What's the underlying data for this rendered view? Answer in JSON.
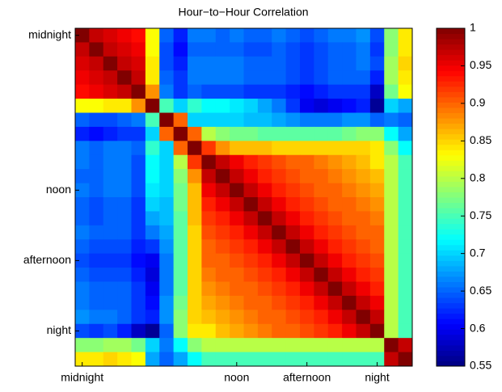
{
  "chart_data": {
    "type": "heatmap",
    "title": "Hour−to−Hour Correlation",
    "x_categories": [
      "midnight",
      null,
      null,
      null,
      null,
      null,
      null,
      null,
      null,
      null,
      null,
      "noon",
      null,
      null,
      null,
      null,
      "afternoon",
      null,
      null,
      null,
      null,
      "night",
      null,
      null
    ],
    "y_categories": [
      "midnight",
      null,
      null,
      null,
      null,
      null,
      null,
      null,
      null,
      null,
      null,
      "noon",
      null,
      null,
      null,
      null,
      "afternoon",
      null,
      null,
      null,
      null,
      "night",
      null,
      null
    ],
    "colormap": "jet",
    "clim": [
      0.55,
      1
    ],
    "cticks": [
      0.55,
      0.6,
      0.65,
      0.7,
      0.75,
      0.8,
      0.85,
      0.9,
      0.95,
      1
    ],
    "values": [
      [
        1,
        0.97,
        0.96,
        0.95,
        0.94,
        0.83,
        0.65,
        0.62,
        0.66,
        0.66,
        0.65,
        0.66,
        0.65,
        0.65,
        0.66,
        0.65,
        0.64,
        0.65,
        0.66,
        0.66,
        0.67,
        0.64,
        0.78,
        0.84
      ],
      [
        0.97,
        1,
        0.97,
        0.96,
        0.95,
        0.83,
        0.64,
        0.61,
        0.65,
        0.65,
        0.65,
        0.65,
        0.64,
        0.64,
        0.65,
        0.64,
        0.63,
        0.64,
        0.65,
        0.65,
        0.66,
        0.63,
        0.78,
        0.84
      ],
      [
        0.96,
        0.97,
        1,
        0.97,
        0.96,
        0.84,
        0.64,
        0.62,
        0.66,
        0.66,
        0.66,
        0.66,
        0.65,
        0.65,
        0.65,
        0.64,
        0.63,
        0.64,
        0.65,
        0.65,
        0.66,
        0.64,
        0.79,
        0.85
      ],
      [
        0.95,
        0.96,
        0.97,
        1,
        0.97,
        0.84,
        0.65,
        0.63,
        0.66,
        0.66,
        0.66,
        0.66,
        0.65,
        0.65,
        0.65,
        0.64,
        0.63,
        0.64,
        0.65,
        0.65,
        0.65,
        0.62,
        0.79,
        0.84
      ],
      [
        0.94,
        0.95,
        0.96,
        0.97,
        1,
        0.88,
        0.66,
        0.63,
        0.65,
        0.64,
        0.64,
        0.64,
        0.63,
        0.63,
        0.63,
        0.62,
        0.61,
        0.62,
        0.63,
        0.63,
        0.63,
        0.58,
        0.77,
        0.83
      ],
      [
        0.83,
        0.83,
        0.84,
        0.84,
        0.88,
        1,
        0.75,
        0.7,
        0.74,
        0.72,
        0.72,
        0.71,
        0.7,
        0.68,
        0.66,
        0.63,
        0.6,
        0.59,
        0.6,
        0.61,
        0.62,
        0.56,
        0.7,
        0.68
      ],
      [
        0.65,
        0.64,
        0.64,
        0.65,
        0.66,
        0.75,
        1,
        0.9,
        0.7,
        0.7,
        0.7,
        0.7,
        0.69,
        0.69,
        0.68,
        0.67,
        0.66,
        0.66,
        0.66,
        0.67,
        0.67,
        0.65,
        0.66,
        0.65
      ],
      [
        0.62,
        0.61,
        0.62,
        0.63,
        0.63,
        0.7,
        0.9,
        1,
        0.9,
        0.8,
        0.78,
        0.77,
        0.77,
        0.76,
        0.76,
        0.76,
        0.76,
        0.76,
        0.76,
        0.77,
        0.78,
        0.78,
        0.72,
        0.68
      ],
      [
        0.66,
        0.65,
        0.66,
        0.66,
        0.65,
        0.74,
        0.7,
        0.9,
        1,
        0.92,
        0.88,
        0.86,
        0.86,
        0.86,
        0.85,
        0.85,
        0.85,
        0.85,
        0.85,
        0.85,
        0.85,
        0.84,
        0.78,
        0.72
      ],
      [
        0.66,
        0.65,
        0.66,
        0.66,
        0.64,
        0.72,
        0.7,
        0.8,
        0.92,
        1,
        0.97,
        0.95,
        0.93,
        0.92,
        0.91,
        0.9,
        0.9,
        0.89,
        0.88,
        0.87,
        0.86,
        0.84,
        0.8,
        0.75
      ],
      [
        0.65,
        0.65,
        0.66,
        0.66,
        0.64,
        0.72,
        0.7,
        0.78,
        0.88,
        0.97,
        1,
        0.97,
        0.95,
        0.93,
        0.92,
        0.91,
        0.9,
        0.9,
        0.89,
        0.88,
        0.87,
        0.86,
        0.8,
        0.75
      ],
      [
        0.66,
        0.65,
        0.66,
        0.66,
        0.64,
        0.71,
        0.7,
        0.77,
        0.86,
        0.95,
        0.97,
        1,
        0.97,
        0.95,
        0.93,
        0.92,
        0.91,
        0.9,
        0.9,
        0.89,
        0.88,
        0.87,
        0.8,
        0.75
      ],
      [
        0.65,
        0.64,
        0.65,
        0.65,
        0.63,
        0.7,
        0.69,
        0.77,
        0.86,
        0.93,
        0.95,
        0.97,
        1,
        0.97,
        0.95,
        0.93,
        0.92,
        0.91,
        0.9,
        0.9,
        0.89,
        0.88,
        0.8,
        0.75
      ],
      [
        0.65,
        0.64,
        0.65,
        0.65,
        0.63,
        0.68,
        0.69,
        0.76,
        0.86,
        0.92,
        0.93,
        0.95,
        0.97,
        1,
        0.97,
        0.95,
        0.93,
        0.92,
        0.91,
        0.9,
        0.9,
        0.89,
        0.8,
        0.75
      ],
      [
        0.66,
        0.65,
        0.65,
        0.65,
        0.63,
        0.66,
        0.68,
        0.76,
        0.85,
        0.91,
        0.92,
        0.93,
        0.95,
        0.97,
        1,
        0.97,
        0.95,
        0.93,
        0.92,
        0.91,
        0.9,
        0.9,
        0.8,
        0.75
      ],
      [
        0.65,
        0.64,
        0.64,
        0.64,
        0.62,
        0.63,
        0.67,
        0.76,
        0.85,
        0.9,
        0.91,
        0.92,
        0.93,
        0.95,
        0.97,
        1,
        0.97,
        0.95,
        0.93,
        0.92,
        0.91,
        0.9,
        0.8,
        0.75
      ],
      [
        0.64,
        0.63,
        0.63,
        0.63,
        0.61,
        0.6,
        0.66,
        0.76,
        0.85,
        0.9,
        0.9,
        0.91,
        0.92,
        0.93,
        0.95,
        0.97,
        1,
        0.97,
        0.95,
        0.93,
        0.92,
        0.91,
        0.8,
        0.75
      ],
      [
        0.65,
        0.64,
        0.64,
        0.64,
        0.62,
        0.59,
        0.66,
        0.76,
        0.85,
        0.89,
        0.9,
        0.9,
        0.91,
        0.92,
        0.93,
        0.95,
        0.97,
        1,
        0.97,
        0.95,
        0.93,
        0.92,
        0.8,
        0.75
      ],
      [
        0.66,
        0.65,
        0.65,
        0.65,
        0.63,
        0.6,
        0.66,
        0.76,
        0.85,
        0.88,
        0.89,
        0.9,
        0.9,
        0.91,
        0.92,
        0.93,
        0.95,
        0.97,
        1,
        0.97,
        0.95,
        0.93,
        0.8,
        0.75
      ],
      [
        0.66,
        0.65,
        0.65,
        0.65,
        0.63,
        0.61,
        0.67,
        0.77,
        0.85,
        0.87,
        0.88,
        0.89,
        0.9,
        0.9,
        0.91,
        0.92,
        0.93,
        0.95,
        0.97,
        1,
        0.97,
        0.95,
        0.8,
        0.75
      ],
      [
        0.67,
        0.66,
        0.66,
        0.65,
        0.63,
        0.62,
        0.67,
        0.78,
        0.85,
        0.86,
        0.87,
        0.88,
        0.89,
        0.9,
        0.9,
        0.91,
        0.92,
        0.93,
        0.95,
        0.97,
        1,
        0.97,
        0.8,
        0.75
      ],
      [
        0.64,
        0.63,
        0.64,
        0.62,
        0.58,
        0.56,
        0.65,
        0.78,
        0.84,
        0.84,
        0.86,
        0.87,
        0.88,
        0.89,
        0.9,
        0.9,
        0.91,
        0.92,
        0.93,
        0.95,
        0.97,
        1,
        0.8,
        0.75
      ],
      [
        0.78,
        0.78,
        0.79,
        0.79,
        0.77,
        0.7,
        0.66,
        0.72,
        0.78,
        0.8,
        0.8,
        0.8,
        0.8,
        0.8,
        0.8,
        0.8,
        0.8,
        0.8,
        0.8,
        0.8,
        0.8,
        0.8,
        1,
        0.97
      ],
      [
        0.84,
        0.84,
        0.85,
        0.84,
        0.83,
        0.68,
        0.65,
        0.68,
        0.72,
        0.75,
        0.75,
        0.75,
        0.75,
        0.75,
        0.75,
        0.75,
        0.75,
        0.75,
        0.75,
        0.75,
        0.75,
        0.75,
        0.97,
        1
      ]
    ]
  }
}
